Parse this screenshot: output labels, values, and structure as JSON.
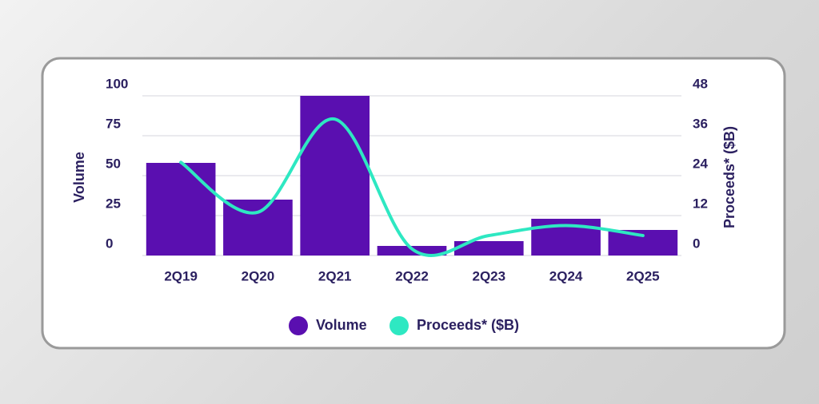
{
  "chart_data": {
    "type": "bar",
    "ylabel": "Volume",
    "y2label": "Proceeds* ($B)",
    "categories": [
      "2Q19",
      "2Q20",
      "2Q21",
      "2Q22",
      "2Q23",
      "2Q24",
      "2Q25"
    ],
    "series": [
      {
        "name": "Volume",
        "type": "bar",
        "color": "#5a0fb0",
        "values": [
          58,
          35,
          100,
          6,
          9,
          23,
          16
        ]
      },
      {
        "name": "Proceeds* ($B)",
        "type": "line",
        "axis": "y2",
        "color": "#2ee8c2",
        "values": [
          28,
          13,
          41,
          2,
          6,
          9,
          6
        ]
      }
    ],
    "ylim": [
      0,
      100
    ],
    "yticks": [
      0,
      25,
      50,
      75,
      100
    ],
    "y2lim": [
      0,
      48
    ],
    "y2ticks": [
      0,
      12,
      24,
      36,
      48
    ],
    "grid": true
  }
}
